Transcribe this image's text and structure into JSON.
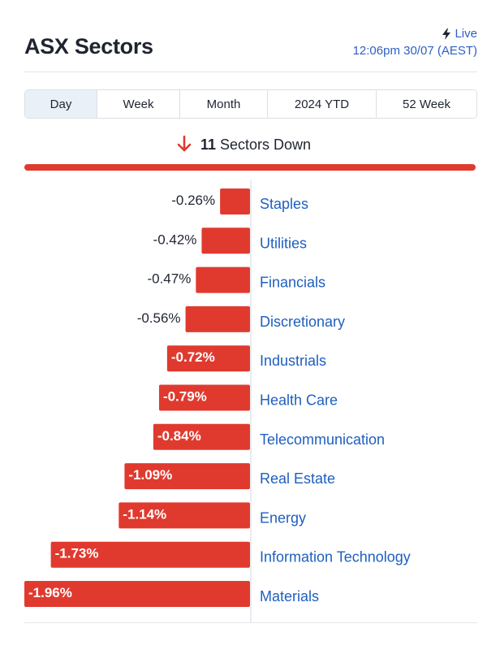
{
  "header": {
    "title": "ASX Sectors",
    "live_label": "Live",
    "timestamp": "12:06pm 30/07 (AEST)",
    "icon": "lightning-bolt-icon"
  },
  "tabs": [
    {
      "label": "Day",
      "active": true
    },
    {
      "label": "Week",
      "active": false
    },
    {
      "label": "Month",
      "active": false
    },
    {
      "label": "2024 YTD",
      "active": false
    },
    {
      "label": "52 Week",
      "active": false
    }
  ],
  "summary": {
    "arrow_icon": "down-arrow-icon",
    "count": "11",
    "text": "Sectors Down"
  },
  "colors": {
    "negative": "#e03a2f",
    "link": "#1f5fbf",
    "accent_blue": "#2d5fc4"
  },
  "chart_data": {
    "type": "bar",
    "orientation": "horizontal",
    "categories": [
      "Staples",
      "Utilities",
      "Financials",
      "Discretionary",
      "Industrials",
      "Health Care",
      "Telecommunication",
      "Real Estate",
      "Energy",
      "Information Technology",
      "Materials"
    ],
    "values": [
      -0.26,
      -0.42,
      -0.47,
      -0.56,
      -0.72,
      -0.79,
      -0.84,
      -1.09,
      -1.14,
      -1.73,
      -1.96
    ],
    "value_labels": [
      "-0.26%",
      "-0.42%",
      "-0.47%",
      "-0.56%",
      "-0.72%",
      "-0.79%",
      "-0.84%",
      "-1.09%",
      "-1.14%",
      "-1.73%",
      "-1.96%"
    ],
    "xlim": [
      -1.96,
      0
    ],
    "grid": false,
    "legend": "none"
  }
}
